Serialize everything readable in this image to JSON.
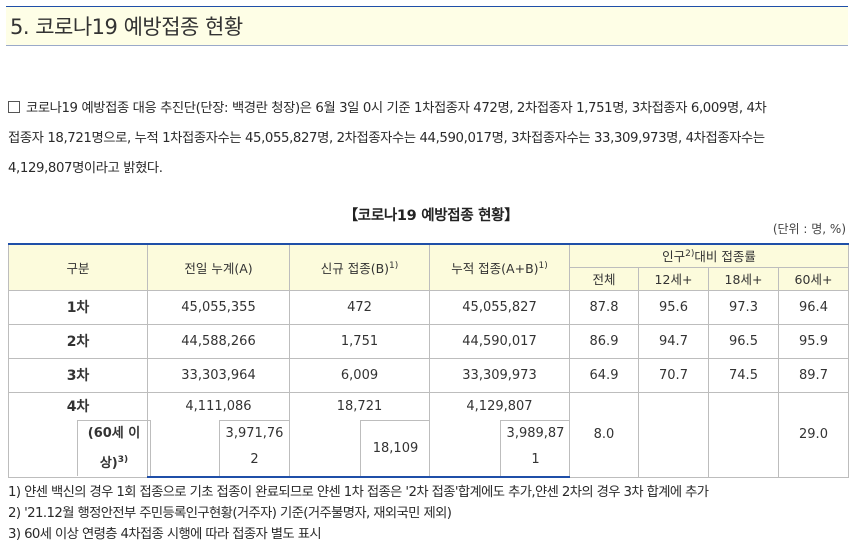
{
  "header": {
    "title": "5. 코로나19 예방접종 현황"
  },
  "intro": {
    "line1": "코로나19 예방접종 대응 추진단(단장: 백경란 청장)은 6월 3일 0시 기준 1차접종자 472명, 2차접종자 1,751명, 3차접종자 6,009명, 4차",
    "line2": "접종자 18,721명으로, 누적 1차접종자수는 45,055,827명, 2차접종자수는 44,590,017명, 3차접종자수는 33,309,973명, 4차접종자수는",
    "line3": "4,129,807명이라고 밝혔다."
  },
  "table": {
    "title": "【코로나19 예방접종 현황】",
    "unit": "(단위 : 명, %)",
    "headers": {
      "category": "구분",
      "prev_cumulative": "전일 누계(A)",
      "new": "신규 접종(B)",
      "new_sup": "1)",
      "cumulative": "누적 접종(A+B)",
      "cumulative_sup": "1)",
      "ratio_pre": "인구",
      "ratio_sup": "2)",
      "ratio_post": "대비 접종률",
      "ratio_cols": [
        "전체",
        "12세+",
        "18세+",
        "60세+"
      ]
    },
    "rows": [
      {
        "label": "1차",
        "prev": "45,055,355",
        "new": "472",
        "cum": "45,055,827",
        "r_all": "87.8",
        "r_12": "95.6",
        "r_18": "97.3",
        "r_60": "96.4"
      },
      {
        "label": "2차",
        "prev": "44,588,266",
        "new": "1,751",
        "cum": "44,590,017",
        "r_all": "86.9",
        "r_12": "94.7",
        "r_18": "96.5",
        "r_60": "95.9"
      },
      {
        "label": "3차",
        "prev": "33,303,964",
        "new": "6,009",
        "cum": "33,309,973",
        "r_all": "64.9",
        "r_12": "70.7",
        "r_18": "74.5",
        "r_60": "89.7"
      },
      {
        "label": "4차",
        "prev": "4,111,086",
        "new": "18,721",
        "cum": "4,129,807",
        "r_all": "8.0",
        "r_12": "",
        "r_18": "",
        "r_60": "29.0"
      }
    ],
    "sub_row": {
      "label_line1": "(60세 이",
      "label_line2": "상)",
      "label_sup": "3)",
      "prev_line1": "3,971,76",
      "prev_line2": "2",
      "new": "18,109",
      "cum_line1": "3,989,87",
      "cum_line2": "1"
    }
  },
  "footnotes": [
    "1) 얀센 백신의 경우 1회 접종으로 기초 접종이 완료되므로 얀센 1차 접종은 '2차 접종'합계에도 추가,얀센 2차의 경우 3차 합계에 추가",
    "2) '21.12월 행정안전부 주민등록인구현황(거주자) 기준(거주불명자, 재외국민 제외)",
    "3) 60세 이상 연령층 4차접종 시행에 따라 접종자 별도 표시"
  ]
}
